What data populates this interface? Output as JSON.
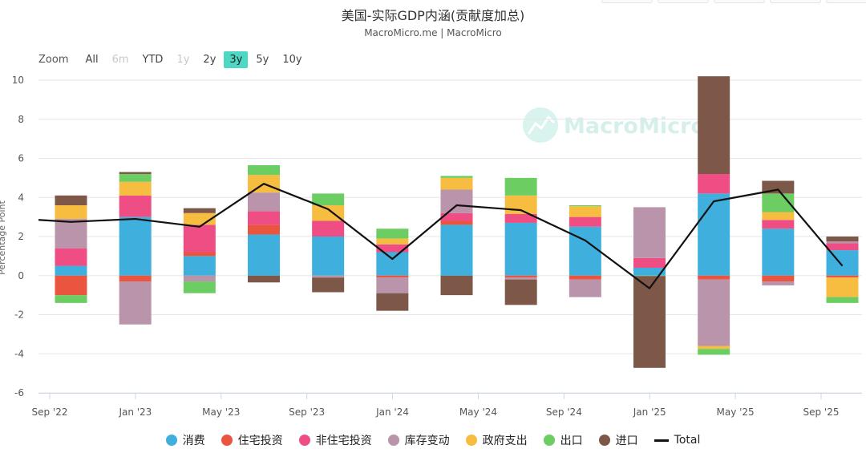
{
  "title": "美国-实际GDP内涵(贡献度加总)",
  "subtitle": "MacroMicro.me | MacroMicro",
  "watermark": "MacroMicro",
  "zoom": {
    "label": "Zoom",
    "buttons": [
      {
        "label": "All",
        "state": "normal"
      },
      {
        "label": "6m",
        "state": "disabled"
      },
      {
        "label": "YTD",
        "state": "normal"
      },
      {
        "label": "1y",
        "state": "disabled"
      },
      {
        "label": "2y",
        "state": "normal"
      },
      {
        "label": "3y",
        "state": "active"
      },
      {
        "label": "5y",
        "state": "normal"
      },
      {
        "label": "10y",
        "state": "normal"
      }
    ]
  },
  "chart_data": {
    "type": "bar",
    "stacked": true,
    "ylabel": "Percentage Point",
    "ylim": [
      -6,
      10
    ],
    "yticks": [
      10,
      8,
      6,
      4,
      2,
      0,
      -2,
      -4,
      -6
    ],
    "grid": true,
    "x_tick_labels": [
      "Sep '22",
      "Jan '23",
      "May '23",
      "Sep '23",
      "Jan '24",
      "May '24",
      "Sep '24",
      "Jan '25",
      "May '25",
      "Sep '25"
    ],
    "categories": [
      "2022Q3",
      "2022Q4",
      "2023Q1",
      "2023Q2",
      "2023Q3",
      "2023Q4",
      "2024Q1",
      "2024Q2",
      "2024Q3",
      "2024Q4",
      "2025Q1",
      "2025Q2",
      "2025Q3"
    ],
    "series": [
      {
        "name": "消费",
        "color": "#3fb0dd",
        "values": [
          0.5,
          3.0,
          1.0,
          2.1,
          2.0,
          1.2,
          2.6,
          2.7,
          2.5,
          0.4,
          4.2,
          2.4,
          1.3
        ]
      },
      {
        "name": "住宅投资",
        "color": "#e9553f",
        "values": [
          -1.0,
          -0.3,
          0.2,
          0.5,
          0.0,
          -0.1,
          0.2,
          -0.1,
          -0.2,
          0.0,
          -0.2,
          -0.3,
          -0.1
        ]
      },
      {
        "name": "非住宅投资",
        "color": "#ef4e84",
        "values": [
          0.9,
          1.1,
          1.4,
          0.7,
          0.8,
          0.4,
          0.4,
          0.45,
          0.5,
          0.5,
          1.0,
          0.45,
          0.35
        ]
      },
      {
        "name": "库存变动",
        "color": "#b994ab",
        "values": [
          1.5,
          -2.2,
          -0.3,
          0.95,
          -0.1,
          -0.8,
          1.2,
          -0.1,
          -0.9,
          2.6,
          -3.4,
          -0.2,
          0.1
        ]
      },
      {
        "name": "政府支出",
        "color": "#f6bd40",
        "values": [
          0.7,
          0.7,
          0.6,
          0.9,
          0.8,
          0.3,
          0.6,
          0.95,
          0.55,
          0.0,
          -0.15,
          0.4,
          -1.0
        ]
      },
      {
        "name": "出口",
        "color": "#6ccd63",
        "values": [
          -0.4,
          0.4,
          -0.6,
          0.5,
          0.6,
          0.5,
          0.1,
          0.9,
          0.05,
          -0.02,
          -0.3,
          0.95,
          -0.3
        ]
      },
      {
        "name": "进口",
        "color": "#7d5849",
        "values": [
          0.5,
          0.1,
          0.25,
          -0.35,
          -0.75,
          -0.9,
          -1.0,
          -1.3,
          0.0,
          -4.7,
          5.0,
          0.65,
          0.25
        ]
      }
    ],
    "total": {
      "name": "Total",
      "color": "#111111",
      "values": [
        2.75,
        2.9,
        2.5,
        4.7,
        3.4,
        0.85,
        3.6,
        3.35,
        1.8,
        -0.65,
        3.8,
        4.4,
        0.5
      ],
      "left_edge_value": 2.85
    }
  }
}
